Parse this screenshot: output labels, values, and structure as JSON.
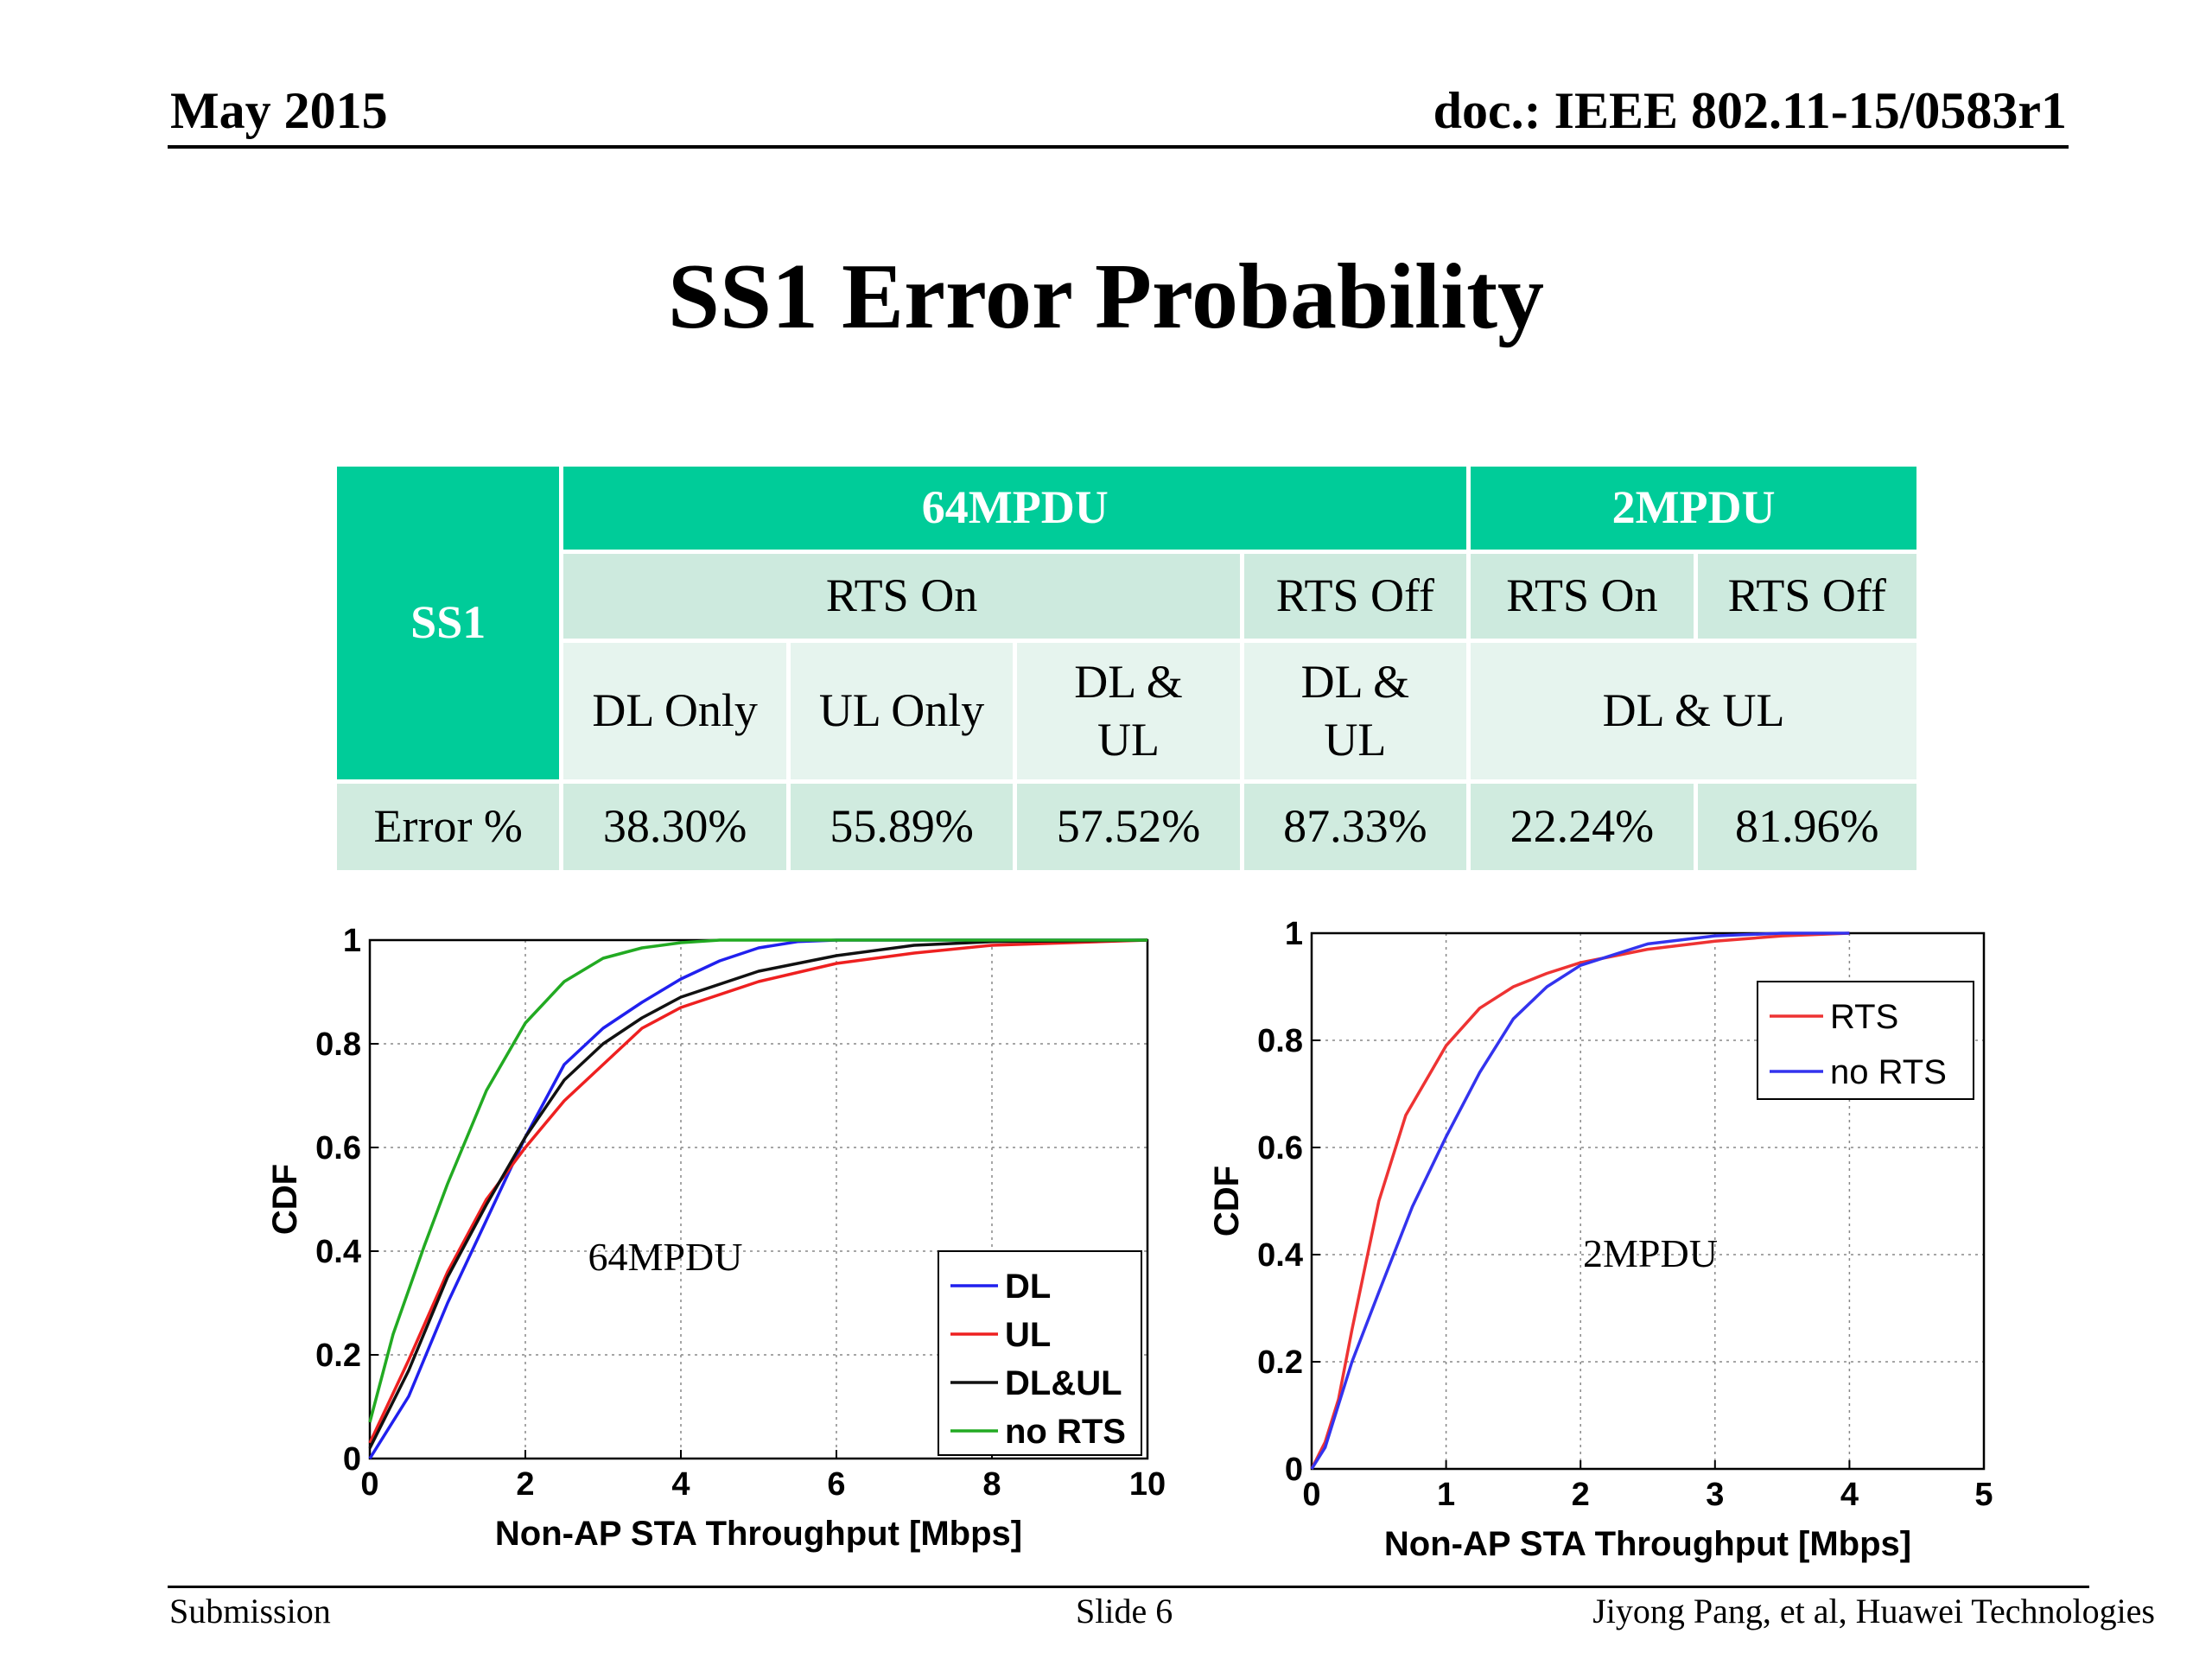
{
  "header": {
    "date": "May 2015",
    "doc": "doc.: IEEE 802.11-15/0583r1"
  },
  "title": "SS1 Error Probability",
  "table": {
    "corner": "SS1",
    "group_64": "64MPDU",
    "group_2": "2MPDU",
    "rts_on": "RTS On",
    "rts_off": "RTS Off",
    "rts_on_2": "RTS On",
    "rts_off_2": "RTS Off",
    "dl_only": "DL Only",
    "ul_only": "UL Only",
    "dl_ul_a": "DL & UL",
    "dl_ul_b": "DL & UL",
    "dl_ul_c": "DL & UL",
    "row_label": "Error %",
    "values": [
      "38.30%",
      "55.89%",
      "57.52%",
      "87.33%",
      "22.24%",
      "81.96%"
    ]
  },
  "chart_data": [
    {
      "type": "line",
      "title": "",
      "annotation": "64MPDU",
      "xlabel": "Non-AP STA Throughput [Mbps]",
      "ylabel": "CDF",
      "xlim": [
        0,
        10
      ],
      "ylim": [
        0,
        1
      ],
      "xticks": [
        "0",
        "2",
        "4",
        "6",
        "8",
        "10"
      ],
      "yticks": [
        "0",
        "0.2",
        "0.4",
        "0.6",
        "0.8",
        "1"
      ],
      "grid": true,
      "legend_position": "bottom-right",
      "series": [
        {
          "name": "DL",
          "color": "#2020ee",
          "x": [
            0,
            0.5,
            1,
            1.5,
            2,
            2.5,
            3,
            3.5,
            4,
            4.5,
            5,
            5.5,
            6,
            7,
            10
          ],
          "y": [
            0,
            0.12,
            0.3,
            0.46,
            0.62,
            0.76,
            0.83,
            0.88,
            0.925,
            0.96,
            0.985,
            0.997,
            1,
            1,
            1
          ]
        },
        {
          "name": "UL",
          "color": "#ee2020",
          "x": [
            0,
            0.5,
            1,
            1.5,
            2,
            2.5,
            3,
            3.5,
            4,
            5,
            6,
            7,
            8,
            9,
            10
          ],
          "y": [
            0.03,
            0.19,
            0.36,
            0.5,
            0.6,
            0.69,
            0.76,
            0.83,
            0.87,
            0.92,
            0.955,
            0.975,
            0.99,
            0.995,
            1
          ]
        },
        {
          "name": "DL&UL",
          "color": "#111111",
          "x": [
            0,
            0.5,
            1,
            1.5,
            2,
            2.5,
            3,
            3.5,
            4,
            5,
            6,
            7,
            8,
            10
          ],
          "y": [
            0.02,
            0.17,
            0.35,
            0.49,
            0.62,
            0.73,
            0.8,
            0.85,
            0.89,
            0.94,
            0.97,
            0.99,
            0.997,
            1
          ]
        },
        {
          "name": "no RTS",
          "color": "#22aa22",
          "x": [
            0,
            0.3,
            0.7,
            1,
            1.5,
            2,
            2.5,
            3,
            3.5,
            4,
            4.5,
            5,
            10
          ],
          "y": [
            0.07,
            0.24,
            0.41,
            0.53,
            0.71,
            0.84,
            0.92,
            0.965,
            0.985,
            0.995,
            1,
            1,
            1
          ]
        }
      ]
    },
    {
      "type": "line",
      "title": "",
      "annotation": "2MPDU",
      "xlabel": "Non-AP STA Throughput [Mbps]",
      "ylabel": "CDF",
      "xlim": [
        0,
        5
      ],
      "ylim": [
        0,
        1
      ],
      "xticks": [
        "0",
        "1",
        "2",
        "3",
        "4",
        "5"
      ],
      "yticks": [
        "0",
        "0.2",
        "0.4",
        "0.6",
        "0.8",
        "1"
      ],
      "grid": true,
      "legend_position": "top-right",
      "series": [
        {
          "name": "RTS",
          "color": "#ee3333",
          "x": [
            0,
            0.1,
            0.2,
            0.3,
            0.4,
            0.5,
            0.7,
            1,
            1.25,
            1.5,
            1.75,
            2,
            2.5,
            3,
            3.5,
            4
          ],
          "y": [
            0,
            0.05,
            0.13,
            0.26,
            0.38,
            0.5,
            0.66,
            0.79,
            0.86,
            0.9,
            0.925,
            0.945,
            0.97,
            0.985,
            0.995,
            1
          ]
        },
        {
          "name": "no RTS",
          "color": "#3333ee",
          "x": [
            0,
            0.1,
            0.2,
            0.3,
            0.5,
            0.75,
            1,
            1.25,
            1.5,
            1.75,
            2,
            2.5,
            3,
            3.5,
            4
          ],
          "y": [
            0,
            0.04,
            0.12,
            0.2,
            0.33,
            0.49,
            0.62,
            0.74,
            0.84,
            0.9,
            0.94,
            0.98,
            0.995,
            1,
            1
          ]
        }
      ]
    }
  ],
  "footer": {
    "left": "Submission",
    "center": "Slide 6",
    "right": "Jiyong Pang, et al, Huawei Technologies"
  }
}
